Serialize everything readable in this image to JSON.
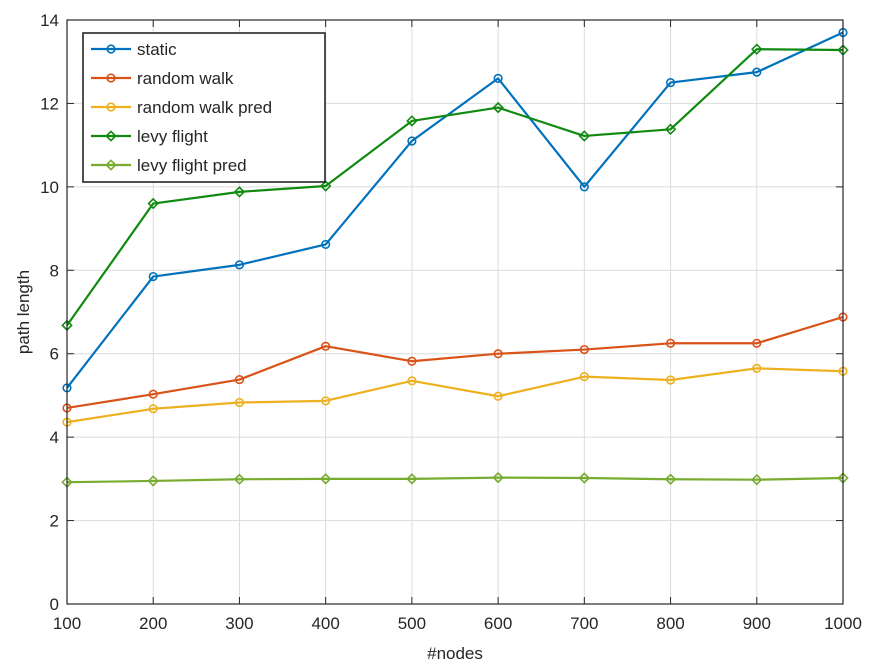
{
  "chart_data": {
    "type": "line",
    "xlabel": "#nodes",
    "ylabel": "path length",
    "x": [
      100,
      200,
      300,
      400,
      500,
      600,
      700,
      800,
      900,
      1000
    ],
    "xlim": [
      100,
      1000
    ],
    "ylim": [
      0,
      14
    ],
    "xticks": [
      100,
      200,
      300,
      400,
      500,
      600,
      700,
      800,
      900,
      1000
    ],
    "yticks": [
      0,
      2,
      4,
      6,
      8,
      10,
      12,
      14
    ],
    "grid": true,
    "legend": "top-left",
    "series": [
      {
        "name": "static",
        "color": "#0072BD",
        "marker": "circle",
        "values": [
          5.18,
          7.85,
          8.13,
          8.62,
          11.1,
          12.6,
          10.0,
          12.5,
          12.75,
          13.7
        ]
      },
      {
        "name": "random walk",
        "color": "#D95319",
        "marker": "circle",
        "values": [
          4.7,
          5.03,
          5.38,
          6.18,
          5.82,
          6.0,
          6.1,
          6.25,
          6.25,
          6.88
        ]
      },
      {
        "name": "random walk pred",
        "color": "#EDB120",
        "marker": "circle",
        "values": [
          4.36,
          4.68,
          4.83,
          4.87,
          5.35,
          4.98,
          5.45,
          5.37,
          5.65,
          5.58
        ]
      },
      {
        "name": "levy flight",
        "color": "#108A10",
        "marker": "diamond",
        "values": [
          6.68,
          9.6,
          9.88,
          10.02,
          11.58,
          11.9,
          11.22,
          11.38,
          13.3,
          13.28
        ]
      },
      {
        "name": "levy flight pred",
        "color": "#77AC30",
        "marker": "diamond",
        "values": [
          2.92,
          2.95,
          2.99,
          3.0,
          3.0,
          3.03,
          3.02,
          2.99,
          2.98,
          3.02
        ]
      }
    ]
  }
}
